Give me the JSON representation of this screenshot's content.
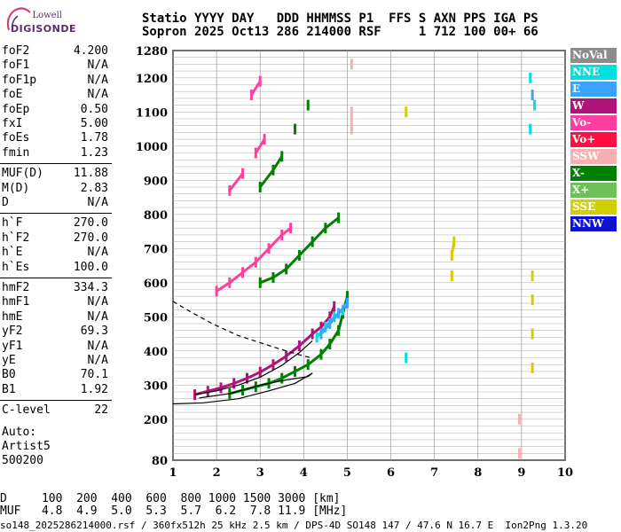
{
  "logo": {
    "line1": "Lowell",
    "line2": "DIGISONDE"
  },
  "header": {
    "line1": "Statio YYYY DAY   DDD HHMMSS P1  FFS S AXN PPS IGA PS",
    "line2": "Sopron 2025 Oct13 286 214000 RSF     1 712 100 00+ 66"
  },
  "params": [
    {
      "name": "foF2",
      "value": "4.200"
    },
    {
      "name": "foF1",
      "value": "N/A"
    },
    {
      "name": "foF1p",
      "value": "N/A"
    },
    {
      "name": "foE",
      "value": "N/A"
    },
    {
      "name": "foEp",
      "value": "0.50"
    },
    {
      "name": "fxI",
      "value": "5.00"
    },
    {
      "name": "foEs",
      "value": "1.78"
    },
    {
      "name": "fmin",
      "value": "1.23"
    },
    {
      "name": "MUF(D)",
      "value": "11.88"
    },
    {
      "name": "M(D)",
      "value": "2.83"
    },
    {
      "name": "D",
      "value": "N/A"
    },
    {
      "name": "h`F",
      "value": "270.0"
    },
    {
      "name": "h`F2",
      "value": "270.0"
    },
    {
      "name": "h`E",
      "value": "N/A"
    },
    {
      "name": "h`Es",
      "value": "100.0"
    },
    {
      "name": "hmF2",
      "value": "334.3"
    },
    {
      "name": "hmF1",
      "value": "N/A"
    },
    {
      "name": "hmE",
      "value": "N/A"
    },
    {
      "name": "yF2",
      "value": "69.3"
    },
    {
      "name": "yF1",
      "value": "N/A"
    },
    {
      "name": "yE",
      "value": "N/A"
    },
    {
      "name": "B0",
      "value": "70.1"
    },
    {
      "name": "B1",
      "value": "1.92"
    },
    {
      "name": "C-level",
      "value": "22"
    }
  ],
  "auto": {
    "line1": "Auto:",
    "line2": "Artist5",
    "line3": "500200"
  },
  "legend": [
    {
      "label": "NoVal",
      "color": "#8c8c8c"
    },
    {
      "label": "NNE",
      "color": "#00e0e0"
    },
    {
      "label": "E",
      "color": "#3ba3ff"
    },
    {
      "label": "W",
      "color": "#b0147a"
    },
    {
      "label": "Vo-",
      "color": "#ff3fa0"
    },
    {
      "label": "Vo+",
      "color": "#ff1040"
    },
    {
      "label": "SSW",
      "color": "#f7b0b0"
    },
    {
      "label": "X-",
      "color": "#008000"
    },
    {
      "label": "X+",
      "color": "#6fbf5a"
    },
    {
      "label": "SSE",
      "color": "#d0d000"
    },
    {
      "label": "NNW",
      "color": "#1010d0"
    }
  ],
  "bottom": {
    "row1": "D     100  200  400  600  800 1000 1500 3000 [km]",
    "row2": "MUF   4.8  4.9  5.0  5.3  5.7  6.2  7.8 11.9 [MHz]"
  },
  "footer": "so148_2025286214000.rsf / 360fx512h 25 kHz 2.5 km / DPS-4D SO148 147 / 47.6 N 16.7 E  Ion2Png 1.3.20",
  "chart_data": {
    "type": "scatter",
    "xlim": [
      1,
      10
    ],
    "ylim": [
      80,
      1280
    ],
    "xticks": [
      1,
      2,
      3,
      4,
      5,
      6,
      7,
      8,
      9,
      10
    ],
    "yticks": [
      80,
      200,
      300,
      400,
      500,
      600,
      700,
      800,
      900,
      1000,
      1100,
      1200,
      1280
    ],
    "grid": true,
    "series": [
      {
        "name": "W",
        "color": "#b0147a",
        "points": [
          [
            1.5,
            272
          ],
          [
            1.8,
            282
          ],
          [
            2.1,
            292
          ],
          [
            2.4,
            305
          ],
          [
            2.7,
            320
          ],
          [
            3.0,
            338
          ],
          [
            3.3,
            360
          ],
          [
            3.6,
            385
          ],
          [
            3.9,
            415
          ],
          [
            4.2,
            450
          ],
          [
            4.4,
            470
          ],
          [
            4.6,
            500
          ],
          [
            4.7,
            530
          ]
        ]
      },
      {
        "name": "Vo-",
        "color": "#ff3fa0",
        "points": [
          [
            2.0,
            575
          ],
          [
            2.3,
            600
          ],
          [
            2.6,
            630
          ],
          [
            2.9,
            660
          ],
          [
            3.2,
            700
          ],
          [
            3.5,
            740
          ],
          [
            3.7,
            760
          ],
          [
            2.3,
            870
          ],
          [
            2.6,
            920
          ],
          [
            2.9,
            980
          ],
          [
            3.1,
            1020
          ],
          [
            2.8,
            1150
          ],
          [
            3.0,
            1190
          ]
        ]
      },
      {
        "name": "X-",
        "color": "#008000",
        "points": [
          [
            2.3,
            275
          ],
          [
            2.6,
            285
          ],
          [
            2.9,
            295
          ],
          [
            3.2,
            305
          ],
          [
            3.5,
            320
          ],
          [
            3.8,
            340
          ],
          [
            4.1,
            360
          ],
          [
            4.4,
            390
          ],
          [
            4.6,
            420
          ],
          [
            4.8,
            460
          ],
          [
            4.9,
            510
          ],
          [
            5.0,
            560
          ],
          [
            3.0,
            600
          ],
          [
            3.3,
            615
          ],
          [
            3.6,
            640
          ],
          [
            3.9,
            680
          ],
          [
            4.2,
            720
          ],
          [
            4.5,
            760
          ],
          [
            4.8,
            790
          ],
          [
            3.0,
            880
          ],
          [
            3.3,
            930
          ],
          [
            3.5,
            970
          ],
          [
            3.8,
            1050
          ],
          [
            4.1,
            1120
          ]
        ]
      },
      {
        "name": "NNE",
        "color": "#00e0e0",
        "points": [
          [
            4.3,
            440
          ],
          [
            4.5,
            470
          ],
          [
            4.7,
            500
          ],
          [
            4.9,
            520
          ],
          [
            6.35,
            380
          ],
          [
            9.2,
            1050
          ],
          [
            9.3,
            1120
          ],
          [
            9.2,
            1200
          ]
        ]
      },
      {
        "name": "E",
        "color": "#3ba3ff",
        "points": [
          [
            4.4,
            450
          ],
          [
            4.6,
            480
          ],
          [
            4.8,
            510
          ],
          [
            5.0,
            540
          ],
          [
            9.25,
            1150
          ]
        ]
      },
      {
        "name": "SSE",
        "color": "#d0d000",
        "points": [
          [
            7.4,
            620
          ],
          [
            7.4,
            680
          ],
          [
            7.45,
            720
          ],
          [
            9.25,
            350
          ],
          [
            9.25,
            450
          ],
          [
            9.25,
            550
          ],
          [
            9.25,
            620
          ],
          [
            6.35,
            1100
          ]
        ]
      },
      {
        "name": "SSW",
        "color": "#f7b0b0",
        "points": [
          [
            5.1,
            1050
          ],
          [
            5.1,
            1100
          ],
          [
            5.1,
            1240
          ],
          [
            8.95,
            200
          ],
          [
            8.95,
            100
          ]
        ]
      }
    ],
    "traces": [
      {
        "name": "O-trace profile",
        "style": "solid",
        "points": [
          [
            1.5,
            272
          ],
          [
            2.0,
            283
          ],
          [
            2.5,
            300
          ],
          [
            3.0,
            323
          ],
          [
            3.5,
            358
          ],
          [
            3.9,
            395
          ],
          [
            4.2,
            430
          ]
        ]
      },
      {
        "name": "X profile",
        "style": "solid",
        "points": [
          [
            1.0,
            245
          ],
          [
            1.7,
            248
          ],
          [
            2.5,
            260
          ],
          [
            3.2,
            283
          ],
          [
            3.8,
            305
          ],
          [
            4.2,
            335
          ],
          [
            4.1,
            325
          ],
          [
            3.6,
            315
          ],
          [
            3.0,
            300
          ],
          [
            2.3,
            275
          ],
          [
            1.6,
            262
          ]
        ]
      },
      {
        "name": "Profile dashed",
        "style": "dashed",
        "points": [
          [
            1.0,
            545
          ],
          [
            1.4,
            515
          ],
          [
            1.9,
            480
          ],
          [
            2.5,
            445
          ],
          [
            3.1,
            420
          ],
          [
            3.6,
            400
          ],
          [
            4.0,
            385
          ],
          [
            4.2,
            380
          ]
        ]
      }
    ]
  }
}
